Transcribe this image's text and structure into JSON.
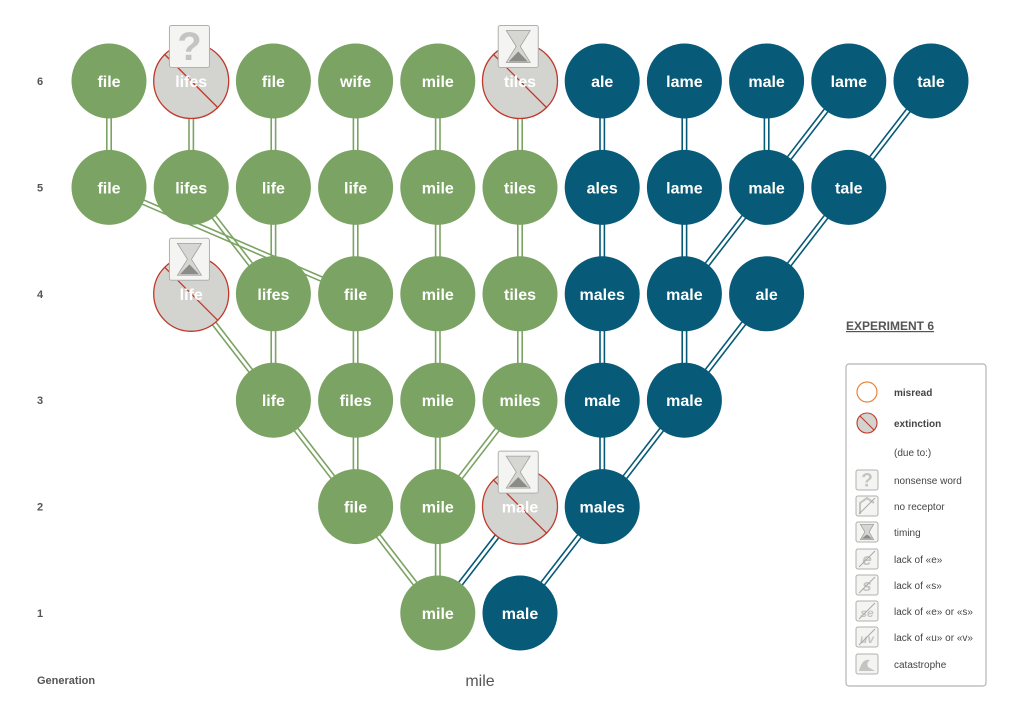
{
  "colors": {
    "green": "#7ba363",
    "green_edge": "#7ba363",
    "blue": "#075a78",
    "blue_edge": "#075a78",
    "extinct_fill": "#d3d4d0",
    "extinct_stroke": "#c0392b",
    "misread_stroke": "#e8853a"
  },
  "generation_axis_label": "Generation",
  "generations": [
    "1",
    "2",
    "3",
    "4",
    "5",
    "6"
  ],
  "root_word": "mile",
  "experiment_title": "EXPERIMENT 6",
  "nodes": [
    {
      "id": "r1",
      "word": "mile",
      "col": 5,
      "row": 1,
      "color": "green"
    },
    {
      "id": "b1",
      "word": "male",
      "col": 6,
      "row": 1,
      "color": "blue"
    },
    {
      "id": "g2a",
      "word": "file",
      "col": 4,
      "row": 2,
      "color": "green"
    },
    {
      "id": "g2b",
      "word": "mile",
      "col": 5,
      "row": 2,
      "color": "green"
    },
    {
      "id": "x2",
      "word": "male",
      "col": 6,
      "row": 2,
      "color": "green",
      "extinct": true,
      "cause": "timing"
    },
    {
      "id": "b2",
      "word": "males",
      "col": 7,
      "row": 2,
      "color": "blue"
    },
    {
      "id": "g3a",
      "word": "life",
      "col": 3,
      "row": 3,
      "color": "green"
    },
    {
      "id": "g3b",
      "word": "files",
      "col": 4,
      "row": 3,
      "color": "green"
    },
    {
      "id": "g3c",
      "word": "mile",
      "col": 5,
      "row": 3,
      "color": "green"
    },
    {
      "id": "g3d",
      "word": "miles",
      "col": 6,
      "row": 3,
      "color": "green"
    },
    {
      "id": "b3a",
      "word": "male",
      "col": 7,
      "row": 3,
      "color": "blue"
    },
    {
      "id": "b3b",
      "word": "male",
      "col": 8,
      "row": 3,
      "color": "blue"
    },
    {
      "id": "x4",
      "word": "life",
      "col": 2,
      "row": 4,
      "color": "green",
      "extinct": true,
      "cause": "timing"
    },
    {
      "id": "g4a",
      "word": "lifes",
      "col": 3,
      "row": 4,
      "color": "green"
    },
    {
      "id": "g4b",
      "word": "file",
      "col": 4,
      "row": 4,
      "color": "green"
    },
    {
      "id": "g4c",
      "word": "mile",
      "col": 5,
      "row": 4,
      "color": "green"
    },
    {
      "id": "g4d",
      "word": "tiles",
      "col": 6,
      "row": 4,
      "color": "green"
    },
    {
      "id": "b4a",
      "word": "males",
      "col": 7,
      "row": 4,
      "color": "blue"
    },
    {
      "id": "b4b",
      "word": "male",
      "col": 8,
      "row": 4,
      "color": "blue"
    },
    {
      "id": "b4c",
      "word": "ale",
      "col": 9,
      "row": 4,
      "color": "blue"
    },
    {
      "id": "g5a",
      "word": "file",
      "col": 1,
      "row": 5,
      "color": "green"
    },
    {
      "id": "g5b",
      "word": "lifes",
      "col": 2,
      "row": 5,
      "color": "green"
    },
    {
      "id": "g5c",
      "word": "life",
      "col": 3,
      "row": 5,
      "color": "green"
    },
    {
      "id": "g5d",
      "word": "life",
      "col": 4,
      "row": 5,
      "color": "green"
    },
    {
      "id": "g5e",
      "word": "mile",
      "col": 5,
      "row": 5,
      "color": "green"
    },
    {
      "id": "g5f",
      "word": "tiles",
      "col": 6,
      "row": 5,
      "color": "green"
    },
    {
      "id": "b5a",
      "word": "ales",
      "col": 7,
      "row": 5,
      "color": "blue"
    },
    {
      "id": "b5b",
      "word": "lame",
      "col": 8,
      "row": 5,
      "color": "blue"
    },
    {
      "id": "b5c",
      "word": "male",
      "col": 9,
      "row": 5,
      "color": "blue"
    },
    {
      "id": "b5d",
      "word": "tale",
      "col": 10,
      "row": 5,
      "color": "blue"
    },
    {
      "id": "g6a",
      "word": "file",
      "col": 1,
      "row": 6,
      "color": "green"
    },
    {
      "id": "x6a",
      "word": "lifes",
      "col": 2,
      "row": 6,
      "color": "green",
      "extinct": true,
      "cause": "nonsense"
    },
    {
      "id": "g6b",
      "word": "file",
      "col": 3,
      "row": 6,
      "color": "green"
    },
    {
      "id": "g6c",
      "word": "wife",
      "col": 4,
      "row": 6,
      "color": "green"
    },
    {
      "id": "g6d",
      "word": "mile",
      "col": 5,
      "row": 6,
      "color": "green"
    },
    {
      "id": "x6b",
      "word": "tiles",
      "col": 6,
      "row": 6,
      "color": "green",
      "extinct": true,
      "cause": "timing"
    },
    {
      "id": "b6a",
      "word": "ale",
      "col": 7,
      "row": 6,
      "color": "blue"
    },
    {
      "id": "b6b",
      "word": "lame",
      "col": 8,
      "row": 6,
      "color": "blue"
    },
    {
      "id": "b6c",
      "word": "male",
      "col": 9,
      "row": 6,
      "color": "blue"
    },
    {
      "id": "b6d",
      "word": "lame",
      "col": 10,
      "row": 6,
      "color": "blue"
    },
    {
      "id": "b6e",
      "word": "tale",
      "col": 11,
      "row": 6,
      "color": "blue"
    }
  ],
  "edges": [
    [
      "r1",
      "g2a",
      "green"
    ],
    [
      "r1",
      "g2b",
      "green"
    ],
    [
      "r1",
      "x2",
      "blue"
    ],
    [
      "b1",
      "b2",
      "blue"
    ],
    [
      "g2a",
      "g3a",
      "green"
    ],
    [
      "g2a",
      "g3b",
      "green"
    ],
    [
      "g2b",
      "g3c",
      "green"
    ],
    [
      "g2b",
      "g3d",
      "green"
    ],
    [
      "b2",
      "b3a",
      "blue"
    ],
    [
      "b2",
      "b3b",
      "blue"
    ],
    [
      "g3a",
      "x4",
      "green"
    ],
    [
      "g3a",
      "g4a",
      "green"
    ],
    [
      "g3b",
      "g4b",
      "green"
    ],
    [
      "g3c",
      "g4c",
      "green"
    ],
    [
      "g3d",
      "g4d",
      "green"
    ],
    [
      "b3a",
      "b4a",
      "blue"
    ],
    [
      "b3b",
      "b4b",
      "blue"
    ],
    [
      "b3b",
      "b4c",
      "blue"
    ],
    [
      "g4a",
      "g5c",
      "green"
    ],
    [
      "g4a",
      "g5b",
      "green"
    ],
    [
      "g4b",
      "g5a",
      "green"
    ],
    [
      "g4b",
      "g5d",
      "green"
    ],
    [
      "g4c",
      "g5e",
      "green"
    ],
    [
      "g4d",
      "g5f",
      "green"
    ],
    [
      "b4a",
      "b5a",
      "blue"
    ],
    [
      "b4b",
      "b5b",
      "blue"
    ],
    [
      "b4b",
      "b5c",
      "blue"
    ],
    [
      "b4c",
      "b5d",
      "blue"
    ],
    [
      "g5a",
      "g6a",
      "green"
    ],
    [
      "g5b",
      "x6a",
      "green"
    ],
    [
      "g5c",
      "g6b",
      "green"
    ],
    [
      "g5d",
      "g6c",
      "green"
    ],
    [
      "g5e",
      "g6d",
      "green"
    ],
    [
      "g5f",
      "x6b",
      "green"
    ],
    [
      "b5a",
      "b6a",
      "blue"
    ],
    [
      "b5b",
      "b6b",
      "blue"
    ],
    [
      "b5c",
      "b6c",
      "blue"
    ],
    [
      "b5c",
      "b6d",
      "blue"
    ],
    [
      "b5d",
      "b6e",
      "blue"
    ]
  ],
  "legend": {
    "items": [
      {
        "key": "misread",
        "label": "misread",
        "bold": true,
        "icon": "misread-circle"
      },
      {
        "key": "extinction",
        "label": "extinction",
        "bold": true,
        "icon": "extinction-circle"
      },
      {
        "key": "due_to",
        "label": "(due to:)",
        "bold": false,
        "icon": "none"
      },
      {
        "key": "nonsense",
        "label": "nonsense word",
        "bold": false,
        "icon": "question-icon"
      },
      {
        "key": "no_receptor",
        "label": "no receptor",
        "bold": false,
        "icon": "no-receptor-icon"
      },
      {
        "key": "timing",
        "label": "timing",
        "bold": false,
        "icon": "hourglass-icon"
      },
      {
        "key": "lack_e",
        "label": "lack of «e»",
        "bold": false,
        "icon": "e-icon"
      },
      {
        "key": "lack_s",
        "label": "lack of «s»",
        "bold": false,
        "icon": "s-icon"
      },
      {
        "key": "lack_e_s",
        "label": "lack of «e» or «s»",
        "bold": false,
        "icon": "se-icon"
      },
      {
        "key": "lack_u_v",
        "label": "lack of «u» or «v»",
        "bold": false,
        "icon": "uv-icon"
      },
      {
        "key": "catastrophe",
        "label": "catastrophe",
        "bold": false,
        "icon": "wave-icon"
      }
    ]
  }
}
